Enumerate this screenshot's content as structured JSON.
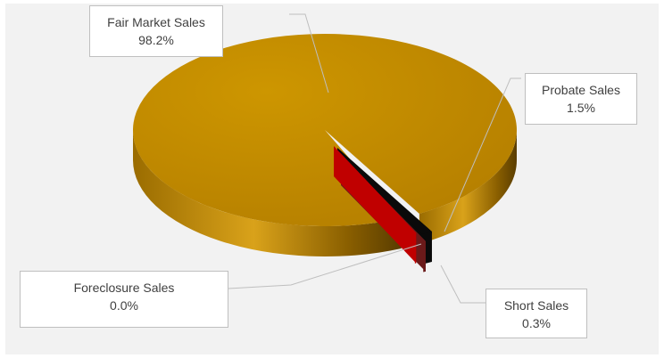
{
  "chart_data": {
    "type": "pie",
    "style": "3d",
    "title": "",
    "legend": "none",
    "slices": [
      {
        "label": "Fair Market Sales",
        "value": 98.2,
        "value_label": "98.2%",
        "color": "#bf8a00"
      },
      {
        "label": "Probate Sales",
        "value": 1.5,
        "value_label": "1.5%",
        "color": "#0a0a0a"
      },
      {
        "label": "Short Sales",
        "value": 0.3,
        "value_label": "0.3%",
        "color": "#6b1a1a"
      },
      {
        "label": "Foreclosure Sales",
        "value": 0.0,
        "value_label": "0.0%",
        "color": "#c00000"
      }
    ]
  }
}
